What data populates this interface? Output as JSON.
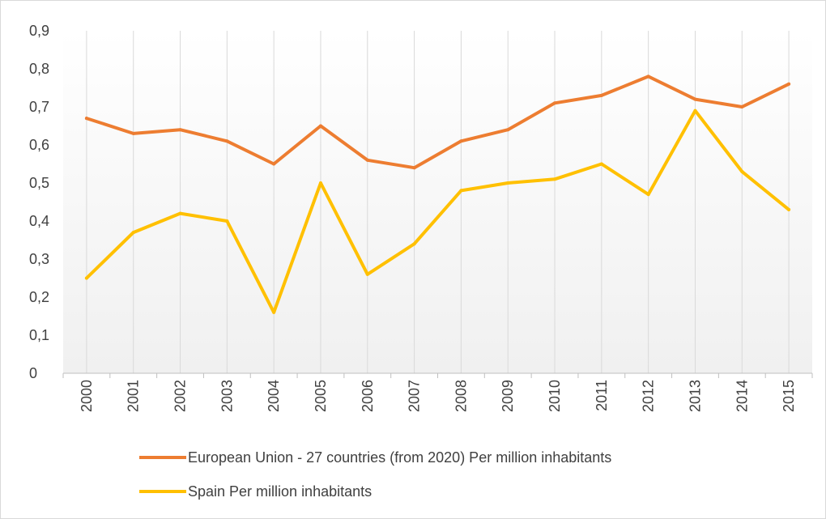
{
  "chart_data": {
    "type": "line",
    "title": "",
    "xlabel": "",
    "ylabel": "",
    "x": [
      "2000",
      "2001",
      "2002",
      "2003",
      "2004",
      "2005",
      "2006",
      "2007",
      "2008",
      "2009",
      "2010",
      "2011",
      "2012",
      "2013",
      "2014",
      "2015"
    ],
    "ylim": [
      0,
      0.9
    ],
    "yticks": [
      "0",
      "0,1",
      "0,2",
      "0,3",
      "0,4",
      "0,5",
      "0,6",
      "0,7",
      "0,8",
      "0,9"
    ],
    "grid": "vertical",
    "legend": "bottom",
    "series": [
      {
        "name": "European Union - 27 countries (from 2020) Per million inhabitants",
        "color": "#ED7D31",
        "values": [
          0.67,
          0.63,
          0.64,
          0.61,
          0.55,
          0.65,
          0.56,
          0.54,
          0.61,
          0.64,
          0.71,
          0.73,
          0.78,
          0.72,
          0.7,
          0.76
        ]
      },
      {
        "name": "Spain Per million inhabitants",
        "color": "#FFC000",
        "values": [
          0.25,
          0.37,
          0.42,
          0.4,
          0.16,
          0.5,
          0.26,
          0.34,
          0.48,
          0.5,
          0.51,
          0.55,
          0.47,
          0.69,
          0.53,
          0.43
        ]
      }
    ]
  }
}
